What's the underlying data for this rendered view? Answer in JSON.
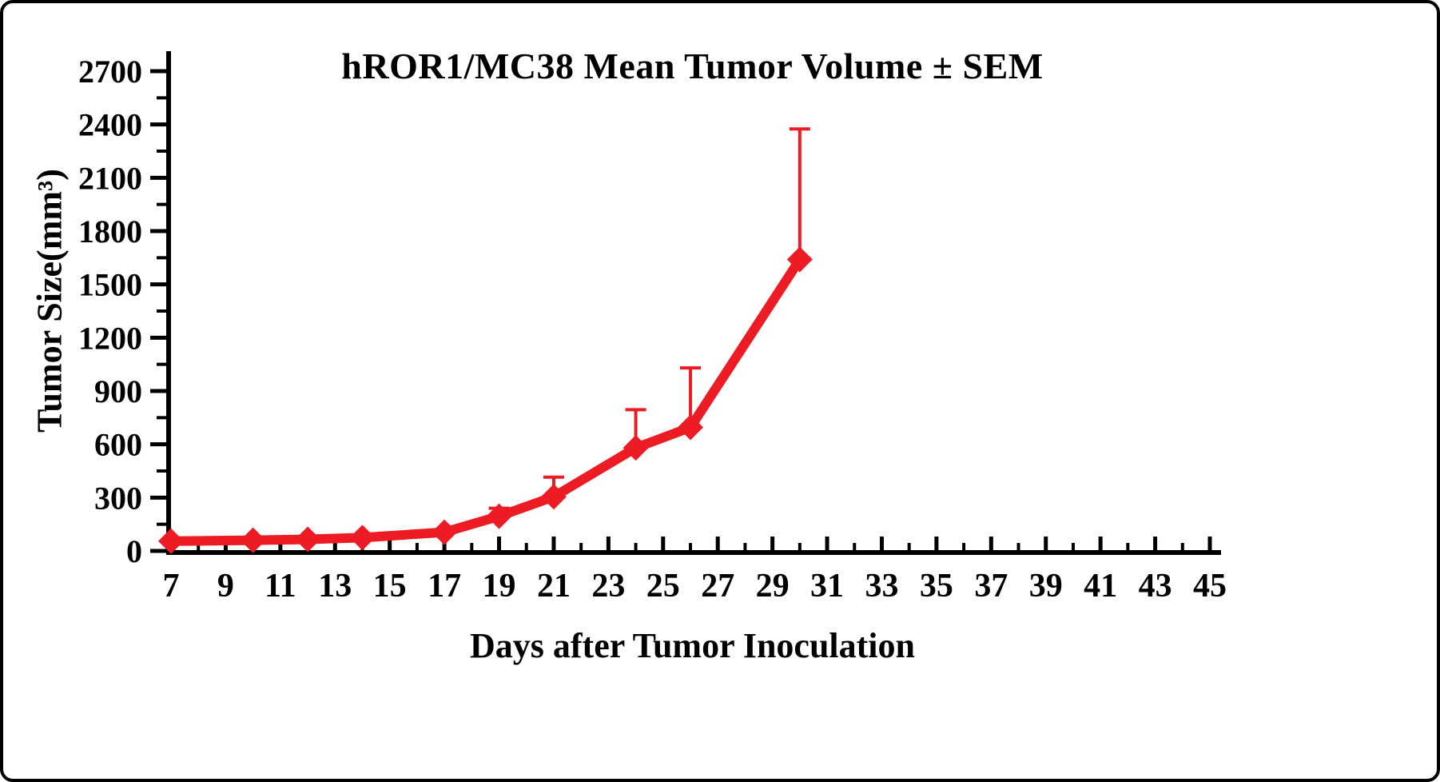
{
  "chart_data": {
    "type": "line",
    "title": "hROR1/MC38 Mean Tumor Volume ± SEM",
    "xlabel": "Days after Tumor Inoculation",
    "ylabel": "Tumor Size(mm³)",
    "x_ticks": [
      7,
      9,
      11,
      13,
      15,
      17,
      19,
      21,
      23,
      25,
      27,
      29,
      31,
      33,
      35,
      37,
      39,
      41,
      43,
      45
    ],
    "x_minor_ticks": [
      8,
      10,
      12,
      14,
      16,
      18,
      20,
      22,
      24,
      26,
      28,
      30,
      32,
      34,
      36,
      38,
      40,
      42,
      44
    ],
    "y_ticks": [
      0,
      300,
      600,
      900,
      1200,
      1500,
      1800,
      2100,
      2400,
      2700
    ],
    "y_minor_ticks": [
      150,
      450,
      750,
      1050,
      1350,
      1650,
      1950,
      2250,
      2550
    ],
    "xlim": [
      7,
      45
    ],
    "ylim": [
      0,
      2700
    ],
    "grid": false,
    "legend": "none",
    "series": [
      {
        "name": "hROR1/MC38 mean tumor volume",
        "color": "#ec1b24",
        "marker": "diamond",
        "x": [
          7,
          10,
          12,
          14,
          17,
          19,
          21,
          24,
          26,
          30
        ],
        "y": [
          55,
          60,
          65,
          75,
          105,
          195,
          305,
          580,
          695,
          1640
        ],
        "sem_upper": [
          0,
          0,
          0,
          0,
          0,
          45,
          110,
          215,
          335,
          735
        ]
      }
    ],
    "axis_color": "#000000"
  }
}
